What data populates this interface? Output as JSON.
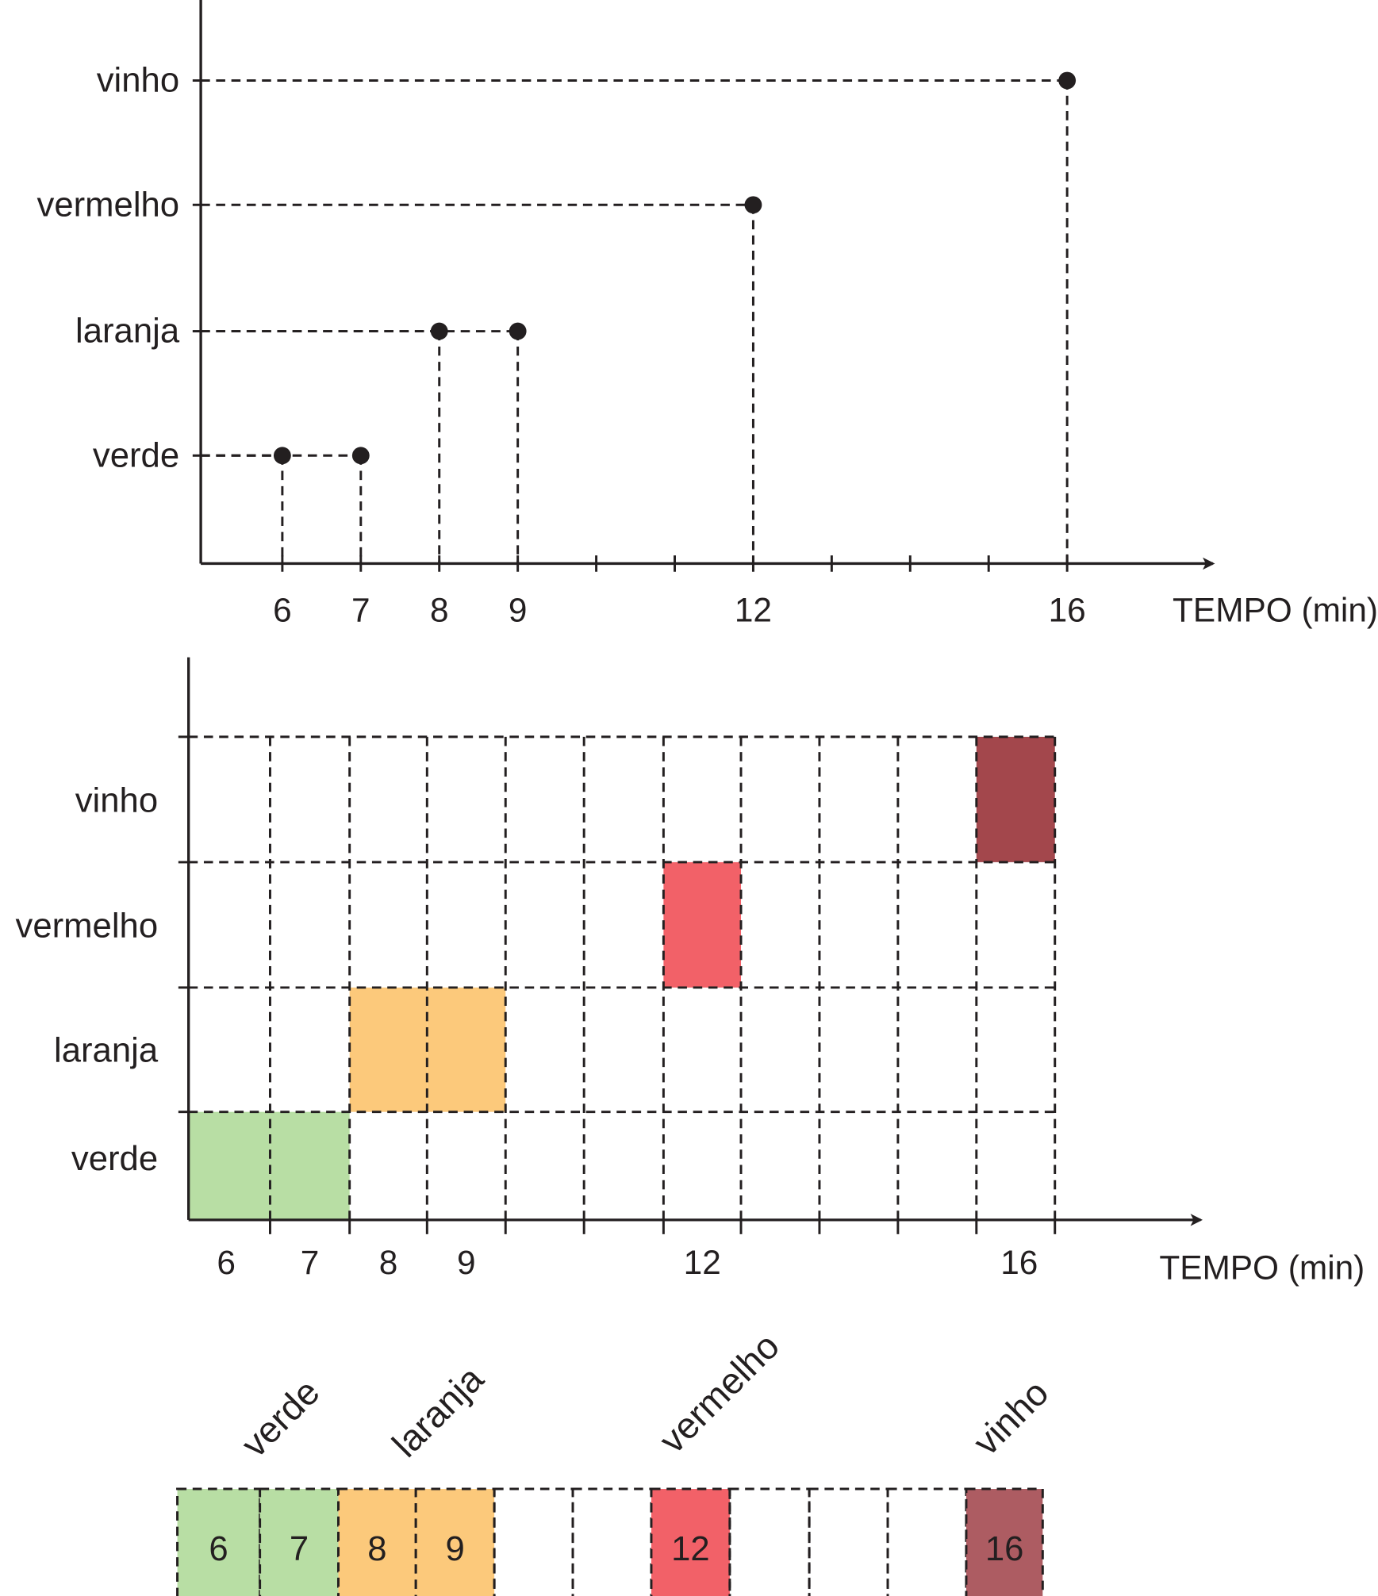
{
  "colors": {
    "ink": "#231f20",
    "verde": "#b8dea4",
    "laranja": "#fcc97b",
    "vermelho": "#f26168",
    "vinho": "#a3474c",
    "vinho_light": "#ad5c62"
  },
  "chart_data": [
    {
      "type": "scatter",
      "ylabel_categories": [
        "verde",
        "laranja",
        "vermelho",
        "vinho"
      ],
      "xlabel": "TEMPO (min)",
      "tick_labels": [
        "6",
        "7",
        "8",
        "9",
        "12",
        "16"
      ],
      "points": [
        {
          "category": "verde",
          "x": 6
        },
        {
          "category": "verde",
          "x": 7
        },
        {
          "category": "laranja",
          "x": 8
        },
        {
          "category": "laranja",
          "x": 9
        },
        {
          "category": "vermelho",
          "x": 12
        },
        {
          "category": "vinho",
          "x": 16
        }
      ]
    },
    {
      "type": "heatmap",
      "rows": [
        "verde",
        "laranja",
        "vermelho",
        "vinho"
      ],
      "xlabel": "TEMPO (min)",
      "tick_labels": [
        "6",
        "7",
        "8",
        "9",
        "12",
        "16"
      ],
      "cells": [
        {
          "row": "verde",
          "x": 6,
          "color": "verde"
        },
        {
          "row": "verde",
          "x": 7,
          "color": "verde"
        },
        {
          "row": "laranja",
          "x": 8,
          "color": "laranja"
        },
        {
          "row": "laranja",
          "x": 9,
          "color": "laranja"
        },
        {
          "row": "vermelho",
          "x": 12,
          "color": "vermelho"
        },
        {
          "row": "vinho",
          "x": 16,
          "color": "vinho"
        }
      ]
    },
    {
      "type": "table",
      "group_labels": [
        "verde",
        "laranja",
        "vermelho",
        "vinho"
      ],
      "cells": [
        {
          "x": 6,
          "label": "6",
          "color": "verde"
        },
        {
          "x": 7,
          "label": "7",
          "color": "verde"
        },
        {
          "x": 8,
          "label": "8",
          "color": "laranja"
        },
        {
          "x": 9,
          "label": "9",
          "color": "laranja"
        },
        {
          "x": 10,
          "label": "",
          "color": ""
        },
        {
          "x": 11,
          "label": "",
          "color": ""
        },
        {
          "x": 12,
          "label": "12",
          "color": "vermelho"
        },
        {
          "x": 13,
          "label": "",
          "color": ""
        },
        {
          "x": 14,
          "label": "",
          "color": ""
        },
        {
          "x": 15,
          "label": "",
          "color": ""
        },
        {
          "x": 16,
          "label": "16",
          "color": "vinho_light"
        }
      ]
    }
  ]
}
